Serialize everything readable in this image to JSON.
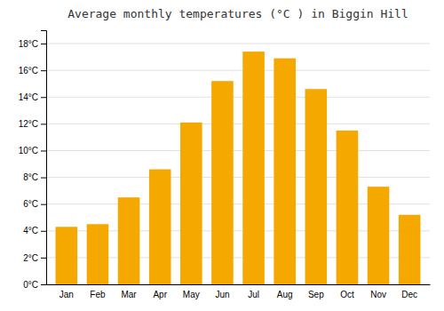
{
  "chart_data": {
    "type": "bar",
    "title": "Average monthly temperatures (°C ) in Biggin Hill",
    "categories": [
      "Jan",
      "Feb",
      "Mar",
      "Apr",
      "May",
      "Jun",
      "Jul",
      "Aug",
      "Sep",
      "Oct",
      "Nov",
      "Dec"
    ],
    "values": [
      4.3,
      4.5,
      6.5,
      8.6,
      12.1,
      15.2,
      17.4,
      16.9,
      14.6,
      11.5,
      7.3,
      5.2
    ],
    "color": "#F5A800",
    "ylim": [
      0,
      19
    ],
    "yticks": [
      {
        "value": 0,
        "label": "0°C"
      },
      {
        "value": 2,
        "label": "2°C"
      },
      {
        "value": 4,
        "label": "4°C"
      },
      {
        "value": 6,
        "label": "6°C"
      },
      {
        "value": 8,
        "label": "8°C"
      },
      {
        "value": 10,
        "label": "10°C"
      },
      {
        "value": 12,
        "label": "12°C"
      },
      {
        "value": 14,
        "label": "14°C"
      },
      {
        "value": 16,
        "label": "16°C"
      },
      {
        "value": 18,
        "label": "18°C"
      }
    ],
    "grid": true
  }
}
